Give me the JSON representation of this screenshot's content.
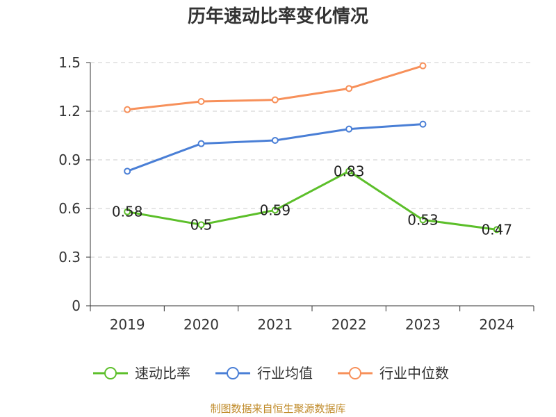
{
  "chart_data": {
    "type": "line",
    "title": "历年速动比率变化情况",
    "categories": [
      "2019",
      "2020",
      "2021",
      "2022",
      "2023",
      "2024"
    ],
    "yticks": [
      "0",
      "0.3",
      "0.6",
      "0.9",
      "1.2",
      "1.5"
    ],
    "ylim": [
      0,
      1.5
    ],
    "grid": true,
    "legend_position": "bottom",
    "series": [
      {
        "name": "速动比率",
        "color": "#5cbf2a",
        "show_labels": true,
        "values": [
          0.58,
          0.5,
          0.59,
          0.83,
          0.53,
          0.47
        ],
        "labels": [
          "0.58",
          "0.5",
          "0.59",
          "0.83",
          "0.53",
          "0.47"
        ]
      },
      {
        "name": "行业均值",
        "color": "#4a7fd6",
        "show_labels": false,
        "values": [
          0.83,
          1.0,
          1.02,
          1.09,
          1.12,
          null
        ]
      },
      {
        "name": "行业中位数",
        "color": "#f7905a",
        "show_labels": false,
        "values": [
          1.21,
          1.26,
          1.27,
          1.34,
          1.48,
          null
        ]
      }
    ]
  },
  "source": "制图数据来自恒生聚源数据库"
}
